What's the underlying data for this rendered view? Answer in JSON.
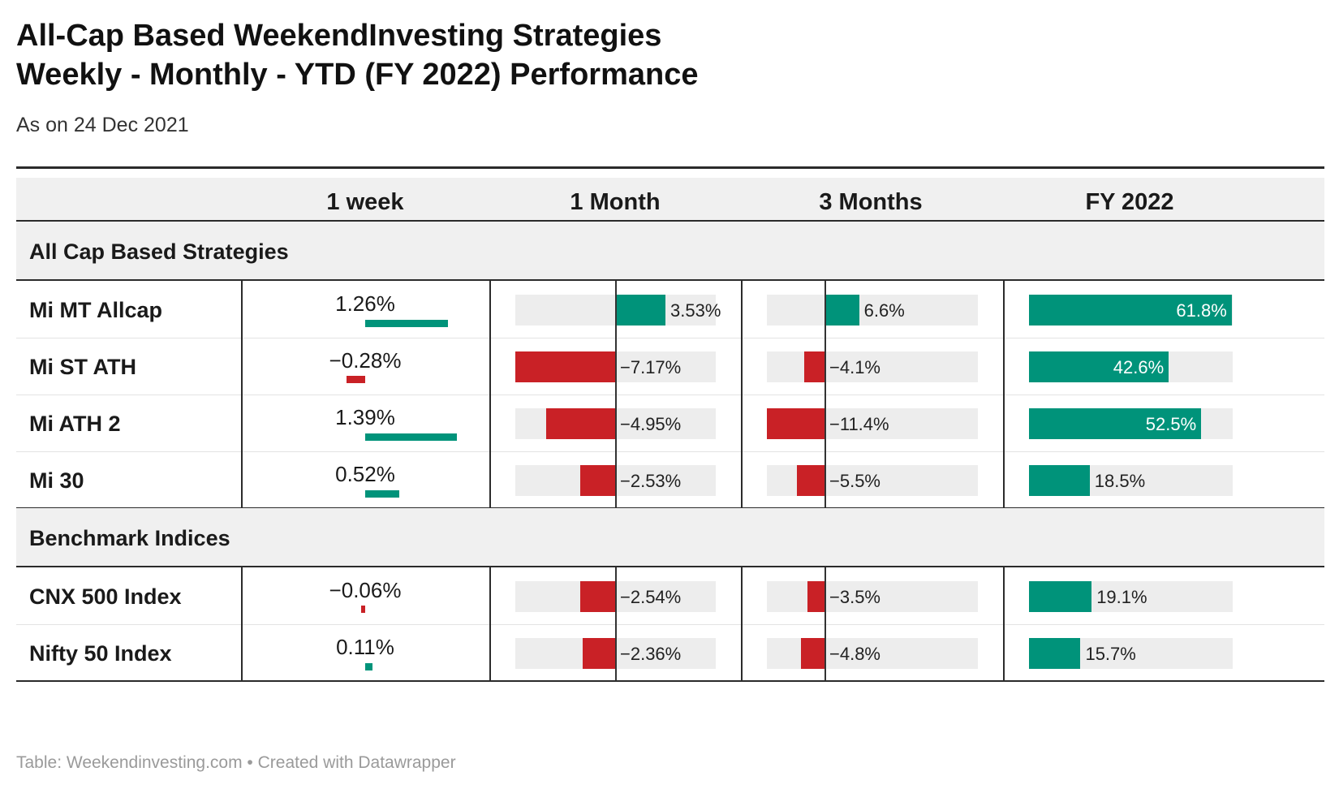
{
  "header": {
    "title_line1": "All-Cap Based WeekendInvesting Strategies",
    "title_line2": "Weekly - Monthly - YTD (FY 2022)  Performance",
    "subtitle": "As on 24 Dec 2021"
  },
  "footer": {
    "source": "Table: Weekendinvesting.com • Created with Datawrapper"
  },
  "colors": {
    "positive": "#00937a",
    "negative": "#c92126",
    "track": "#ededed"
  },
  "chart_data": {
    "type": "table",
    "columns": [
      "1 week",
      "1 Month",
      "3 Months",
      "FY 2022"
    ],
    "column_units": [
      "%",
      "%",
      "%",
      "%"
    ],
    "groups": [
      {
        "name": "All Cap Based Strategies",
        "rows": [
          {
            "name": "Mi MT Allcap",
            "values": [
              1.26,
              3.53,
              6.6,
              61.8
            ],
            "labels": [
              "1.26%",
              "3.53%",
              "6.6%",
              "61.8%"
            ]
          },
          {
            "name": "Mi ST ATH",
            "values": [
              -0.28,
              -7.17,
              -4.1,
              42.6
            ],
            "labels": [
              "−0.28%",
              "−7.17%",
              "−4.1%",
              "42.6%"
            ]
          },
          {
            "name": "Mi ATH 2",
            "values": [
              1.39,
              -4.95,
              -11.4,
              52.5
            ],
            "labels": [
              "1.39%",
              "−4.95%",
              "−11.4%",
              "52.5%"
            ]
          },
          {
            "name": "Mi 30",
            "values": [
              0.52,
              -2.53,
              -5.5,
              18.5
            ],
            "labels": [
              "0.52%",
              "−2.53%",
              "−5.5%",
              "18.5%"
            ]
          }
        ]
      },
      {
        "name": "Benchmark Indices",
        "rows": [
          {
            "name": "CNX 500 Index",
            "values": [
              -0.06,
              -2.54,
              -3.5,
              19.1
            ],
            "labels": [
              "−0.06%",
              "−2.54%",
              "−3.5%",
              "19.1%"
            ]
          },
          {
            "name": "Nifty 50 Index",
            "values": [
              0.11,
              -2.36,
              -4.8,
              15.7
            ],
            "labels": [
              "0.11%",
              "−2.36%",
              "−4.8%",
              "15.7%"
            ]
          }
        ]
      }
    ],
    "column_ranges": [
      [
        -0.28,
        1.39
      ],
      [
        -7.17,
        3.53
      ],
      [
        -11.4,
        6.6
      ],
      [
        0,
        61.8
      ]
    ]
  }
}
